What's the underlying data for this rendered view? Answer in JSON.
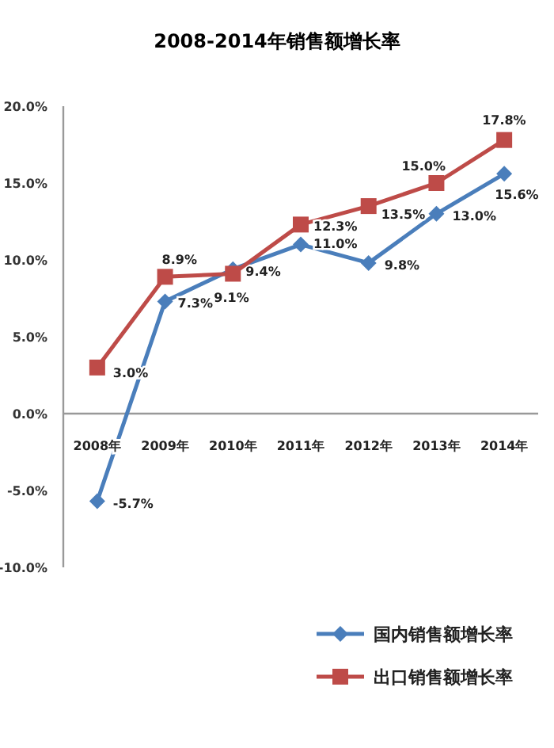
{
  "chart_data": {
    "type": "line",
    "title": "2008-2014年销售额增长率",
    "categories": [
      "2008年",
      "2009年",
      "2010年",
      "2011年",
      "2012年",
      "2013年",
      "2014年"
    ],
    "series": [
      {
        "name": "国内销售额增长率",
        "color": "#4a7ebb",
        "marker": "diamond",
        "values": [
          -5.7,
          7.3,
          9.4,
          11.0,
          9.8,
          13.0,
          15.6
        ],
        "value_labels": [
          "-5.7%",
          "7.3%",
          "9.4%",
          "11.0%",
          "9.8%",
          "13.0%",
          "15.6%"
        ]
      },
      {
        "name": "出口销售额增长率",
        "color": "#be4b48",
        "marker": "square",
        "values": [
          3.0,
          8.9,
          9.1,
          12.3,
          13.5,
          15.0,
          17.8
        ],
        "value_labels": [
          "3.0%",
          "8.9%",
          "9.1%",
          "12.3%",
          "13.5%",
          "15.0%",
          "17.8%"
        ]
      }
    ],
    "ylim": [
      -10,
      20
    ],
    "yticks": [
      {
        "value": -10,
        "label": "-10.0%"
      },
      {
        "value": -5,
        "label": "-5.0%"
      },
      {
        "value": 0,
        "label": "0.0%"
      },
      {
        "value": 5,
        "label": "5.0%"
      },
      {
        "value": 10,
        "label": "10.0%"
      },
      {
        "value": 15,
        "label": "15.0%"
      },
      {
        "value": 20,
        "label": "20.0%"
      }
    ],
    "grid": false,
    "legend": "bottom right",
    "line_style": "solid"
  }
}
